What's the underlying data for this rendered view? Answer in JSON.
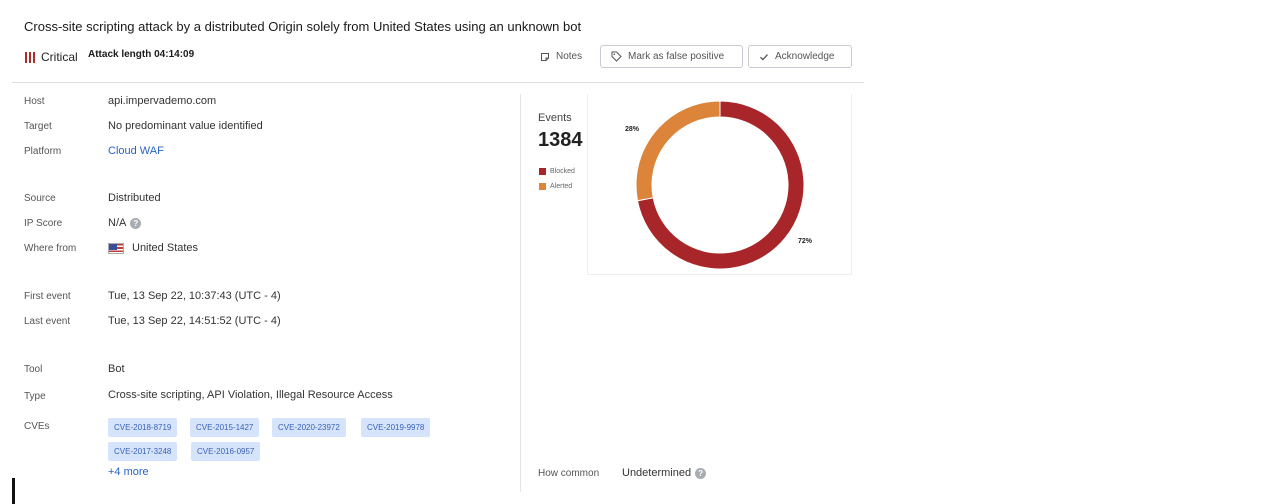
{
  "header": {
    "title": "Cross-site scripting attack by a distributed Origin solely from United States using an unknown bot",
    "severity": "Critical",
    "attack_length": "Attack length 04:14:09",
    "notes_label": "Notes",
    "false_positive_label": "Mark as false positive",
    "acknowledge_label": "Acknowledge"
  },
  "details": {
    "host": {
      "label": "Host",
      "value": "api.impervademo.com"
    },
    "target": {
      "label": "Target",
      "value": "No predominant value identified"
    },
    "platform": {
      "label": "Platform",
      "value": "Cloud WAF"
    },
    "source": {
      "label": "Source",
      "value": "Distributed"
    },
    "ip_score": {
      "label": "IP Score",
      "value": "N/A"
    },
    "where_from": {
      "label": "Where from",
      "value": "United States"
    },
    "first_event": {
      "label": "First event",
      "value": "Tue, 13 Sep 22, 10:37:43 (UTC - 4)"
    },
    "last_event": {
      "label": "Last event",
      "value": "Tue, 13 Sep 22, 14:51:52 (UTC - 4)"
    },
    "tool": {
      "label": "Tool",
      "value": "Bot"
    },
    "type": {
      "label": "Type",
      "value": "Cross-site scripting, API Violation, Illegal Resource Access"
    },
    "cves": {
      "label": "CVEs",
      "items": [
        "CVE-2018-8719",
        "CVE-2015-1427",
        "CVE-2020-23972",
        "CVE-2019-9978",
        "CVE-2017-3248",
        "CVE-2016-0957"
      ],
      "more": "+4 more"
    }
  },
  "events": {
    "title": "Events",
    "count": "1384",
    "how_common_label": "How common",
    "how_common_value": "Undetermined"
  },
  "colors": {
    "blocked": "#a8262a",
    "alerted": "#dc843a",
    "link": "#2a63c8",
    "critical": "#b02a2a"
  },
  "chart_data": {
    "type": "pie",
    "donut": true,
    "series": [
      {
        "name": "Blocked",
        "value": 72,
        "label": "72%"
      },
      {
        "name": "Alerted",
        "value": 28,
        "label": "28%"
      }
    ],
    "legend_position": "left"
  }
}
